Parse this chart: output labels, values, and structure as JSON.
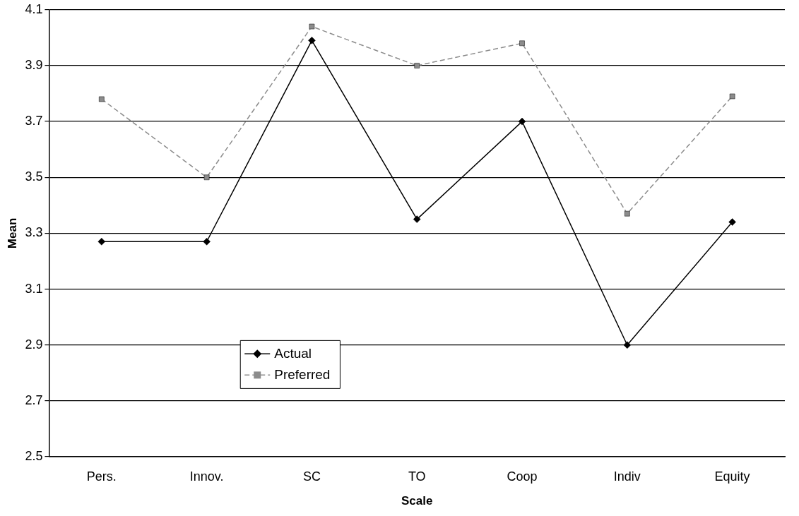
{
  "chart_data": {
    "type": "line",
    "xlabel": "Scale",
    "ylabel": "Mean",
    "categories": [
      "Pers.",
      "Innov.",
      "SC",
      "TO",
      "Coop",
      "Indiv",
      "Equity"
    ],
    "series": [
      {
        "name": "Actual",
        "color": "#000000",
        "marker": "diamond",
        "line_style": "solid",
        "values": [
          3.27,
          3.27,
          3.99,
          3.35,
          3.7,
          2.9,
          3.34
        ]
      },
      {
        "name": "Preferred",
        "color": "#8c8c8c",
        "marker": "square",
        "line_style": "dashed",
        "values": [
          3.78,
          3.5,
          4.04,
          3.9,
          3.98,
          3.37,
          3.79
        ]
      }
    ],
    "ylim": [
      2.5,
      4.1
    ],
    "yticks": [
      2.5,
      2.7,
      2.9,
      3.1,
      3.3,
      3.5,
      3.7,
      3.9,
      4.1
    ],
    "grid": "y",
    "legend": "bottom left"
  }
}
